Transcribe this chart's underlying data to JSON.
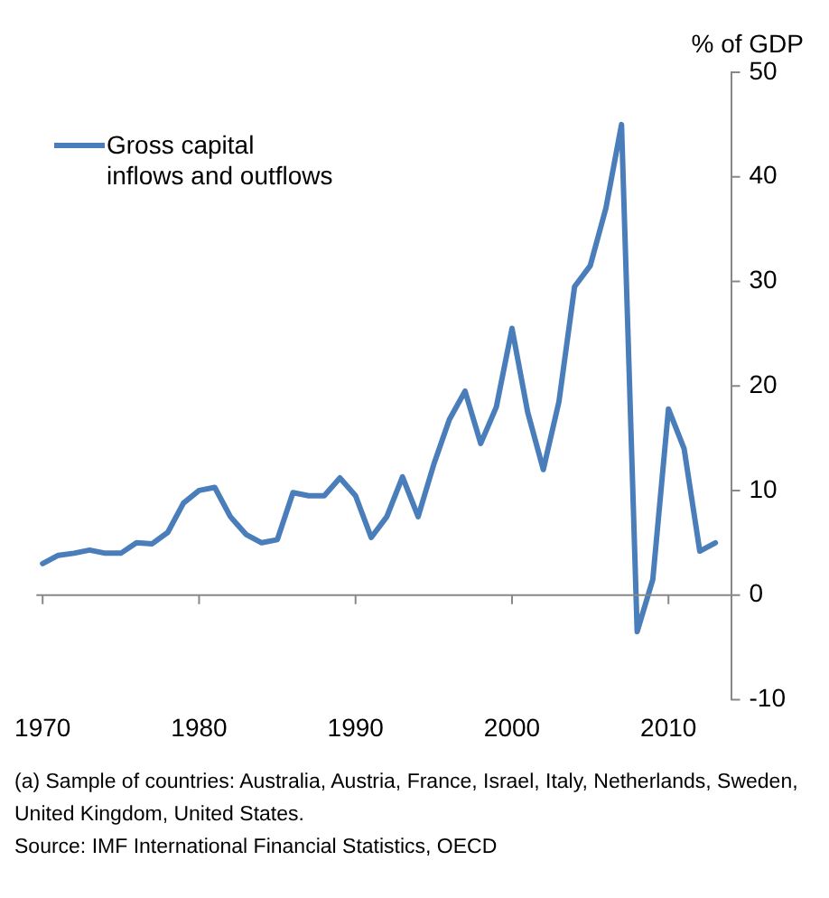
{
  "chart_data": {
    "type": "line",
    "ylabel": "% of GDP",
    "x": [
      1970,
      1971,
      1972,
      1973,
      1974,
      1975,
      1976,
      1977,
      1978,
      1979,
      1980,
      1981,
      1982,
      1983,
      1984,
      1985,
      1986,
      1987,
      1988,
      1989,
      1990,
      1991,
      1992,
      1993,
      1994,
      1995,
      1996,
      1997,
      1998,
      1999,
      2000,
      2001,
      2002,
      2003,
      2004,
      2005,
      2006,
      2007,
      2008,
      2009,
      2010,
      2011,
      2012,
      2013
    ],
    "series": [
      {
        "name": "Gross capital inflows and outflows",
        "color": "#4a7ebb",
        "values": [
          3.0,
          3.8,
          4.0,
          4.3,
          4.0,
          4.0,
          5.0,
          4.9,
          6.0,
          8.8,
          10.0,
          10.3,
          7.5,
          5.8,
          5.0,
          5.3,
          9.8,
          9.5,
          9.5,
          11.2,
          9.5,
          5.5,
          7.5,
          11.3,
          7.5,
          12.5,
          16.8,
          19.5,
          14.5,
          18.0,
          25.5,
          17.5,
          12.0,
          18.5,
          29.5,
          31.5,
          37.0,
          45.0,
          -3.5,
          1.5,
          17.8,
          14.0,
          4.2,
          5.0
        ]
      }
    ],
    "xlim": [
      1969.6,
      2014
    ],
    "xticks": [
      1970,
      1980,
      1990,
      2000,
      2010
    ],
    "ylim": [
      -10,
      50
    ],
    "yticks": [
      -10,
      0,
      10,
      20,
      30,
      40,
      50
    ],
    "grid": false,
    "ref_lines": [
      {
        "axis": "y",
        "value": 0,
        "color": "#888888"
      }
    ],
    "legend": "top left",
    "marker": "none",
    "line_style": "solid",
    "annotations": [
      "(a) Sample of countries: Australia, Austria, France, Israel, Italy, Netherlands, Sweden, United Kingdom, United States.",
      "Source: IMF International Financial Statistics, OECD"
    ]
  }
}
